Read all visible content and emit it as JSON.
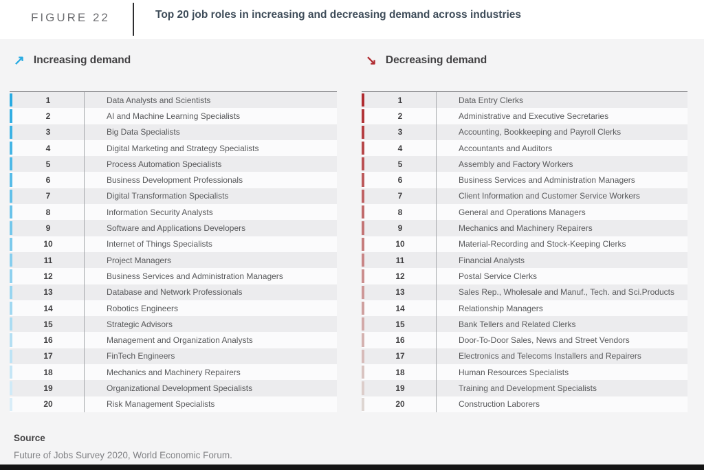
{
  "figure_header": {
    "label": "FIGURE 22",
    "title": "Top 20 job roles in increasing and decreasing demand across industries"
  },
  "chart_data": {
    "type": "table",
    "title": "Top 20 job roles in increasing and decreasing demand across industries",
    "layout": {
      "tables_side_by_side": true,
      "rank_column": true,
      "alternating_row_shading": true
    },
    "tables": [
      {
        "id": "increasing",
        "heading": "Increasing demand",
        "arrow_glyph": "↗",
        "accent_start": "#29abe2",
        "accent_end": "#d9edf8",
        "rows": [
          {
            "rank": 1,
            "role": "Data Analysts and Scientists"
          },
          {
            "rank": 2,
            "role": "AI and Machine Learning Specialists"
          },
          {
            "rank": 3,
            "role": "Big Data Specialists"
          },
          {
            "rank": 4,
            "role": "Digital Marketing and Strategy Specialists"
          },
          {
            "rank": 5,
            "role": "Process Automation Specialists"
          },
          {
            "rank": 6,
            "role": "Business Development Professionals"
          },
          {
            "rank": 7,
            "role": "Digital Transformation Specialists"
          },
          {
            "rank": 8,
            "role": "Information Security Analysts"
          },
          {
            "rank": 9,
            "role": "Software and Applications Developers"
          },
          {
            "rank": 10,
            "role": "Internet of Things Specialists"
          },
          {
            "rank": 11,
            "role": "Project Managers"
          },
          {
            "rank": 12,
            "role": "Business Services and Administration Managers"
          },
          {
            "rank": 13,
            "role": "Database and Network Professionals"
          },
          {
            "rank": 14,
            "role": "Robotics Engineers"
          },
          {
            "rank": 15,
            "role": "Strategic Advisors"
          },
          {
            "rank": 16,
            "role": "Management and Organization Analysts"
          },
          {
            "rank": 17,
            "role": "FinTech Engineers"
          },
          {
            "rank": 18,
            "role": "Mechanics and Machinery Repairers"
          },
          {
            "rank": 19,
            "role": "Organizational Development Specialists"
          },
          {
            "rank": 20,
            "role": "Risk Management Specialists"
          }
        ]
      },
      {
        "id": "decreasing",
        "heading": "Decreasing demand",
        "arrow_glyph": "↘",
        "accent_start": "#b02c31",
        "accent_end": "#ded6d2",
        "rows": [
          {
            "rank": 1,
            "role": "Data Entry Clerks"
          },
          {
            "rank": 2,
            "role": "Administrative and Executive Secretaries"
          },
          {
            "rank": 3,
            "role": "Accounting,  Bookkeeping and Payroll Clerks"
          },
          {
            "rank": 4,
            "role": "Accountants and Auditors"
          },
          {
            "rank": 5,
            "role": "Assembly and Factory Workers"
          },
          {
            "rank": 6,
            "role": "Business Services and Administration Managers"
          },
          {
            "rank": 7,
            "role": "Client Information and Customer Service Workers"
          },
          {
            "rank": 8,
            "role": "General and Operations Managers"
          },
          {
            "rank": 9,
            "role": "Mechanics and Machinery Repairers"
          },
          {
            "rank": 10,
            "role": "Material-Recording and Stock-Keeping Clerks"
          },
          {
            "rank": 11,
            "role": "Financial Analysts"
          },
          {
            "rank": 12,
            "role": "Postal Service Clerks"
          },
          {
            "rank": 13,
            "role": "Sales Rep., Wholesale and Manuf., Tech. and Sci.Products"
          },
          {
            "rank": 14,
            "role": "Relationship Managers"
          },
          {
            "rank": 15,
            "role": "Bank Tellers and Related Clerks"
          },
          {
            "rank": 16,
            "role": "Door-To-Door Sales, News and Street Vendors"
          },
          {
            "rank": 17,
            "role": "Electronics and Telecoms Installers and Repairers"
          },
          {
            "rank": 18,
            "role": "Human Resources Specialists"
          },
          {
            "rank": 19,
            "role": "Training and Development Specialists"
          },
          {
            "rank": 20,
            "role": "Construction Laborers"
          }
        ]
      }
    ]
  },
  "source": {
    "label": "Source",
    "text": "Future of Jobs Survey 2020, World Economic Forum."
  },
  "colors": {
    "page_bg": "#f4f4f5",
    "header_bg": "#ffffff",
    "title_text": "#3e4c59",
    "figure_label_text": "#6d6e71",
    "heading_text": "#414042",
    "row_odd": "#ececee",
    "row_even": "#fbfbfc",
    "table_top_border": "#6d6e71",
    "column_divider": "#a7a9ac",
    "role_text": "#58595b",
    "increasing_accent": "#29abe2",
    "decreasing_accent": "#b02c31",
    "source_text": "#808184",
    "bottom_bar": "#141414"
  }
}
